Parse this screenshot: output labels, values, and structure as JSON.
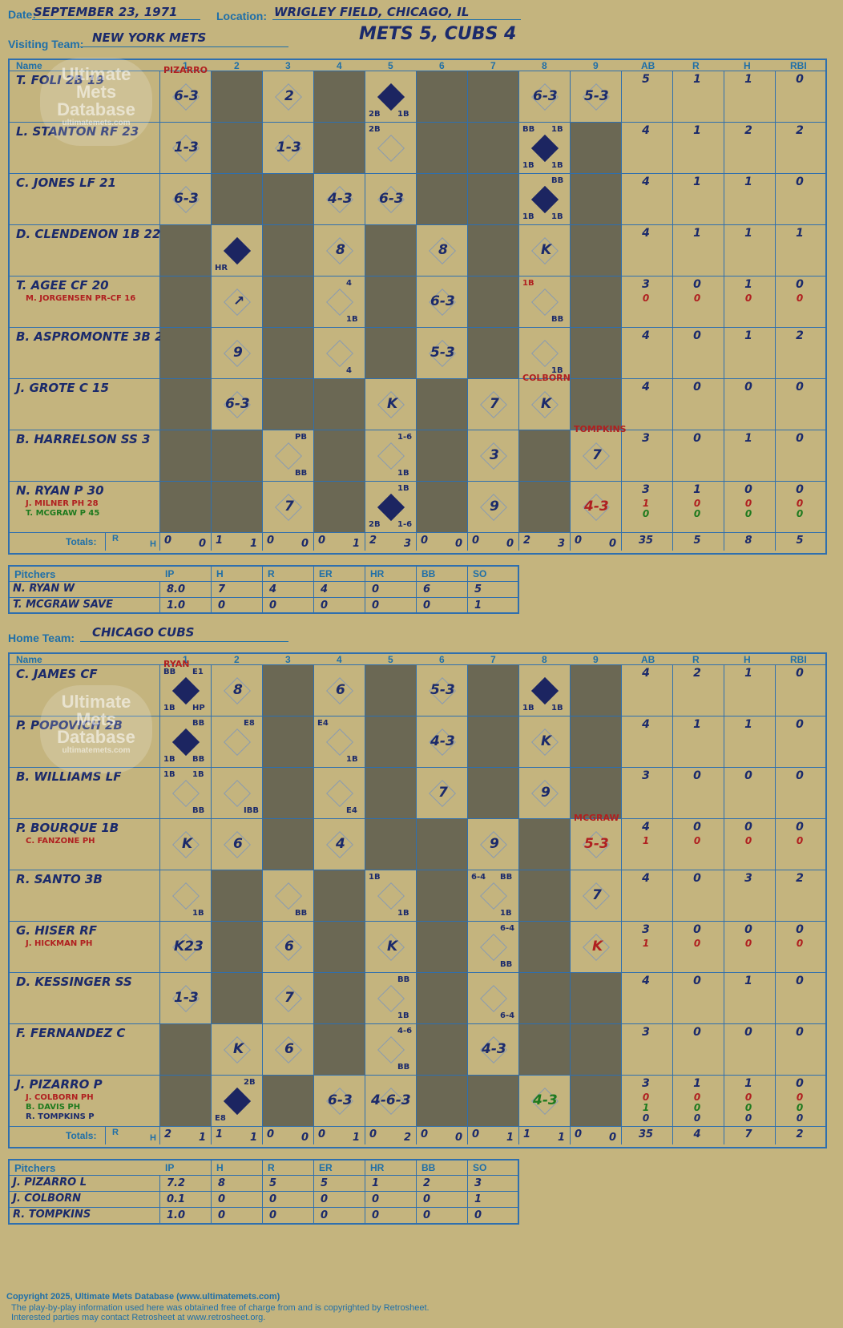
{
  "header": {
    "date_label": "Date:",
    "date": "SEPTEMBER 23, 1971",
    "location_label": "Location:",
    "location": "WRIGLEY FIELD, CHICAGO, IL",
    "visiting_label": "Visiting Team:",
    "visiting_team": "NEW YORK METS",
    "score": "METS 5, CUBS 4",
    "home_label": "Home Team:",
    "home_team": "CHICAGO CUBS"
  },
  "watermark": {
    "line1": "Ultimate",
    "line2": "Mets",
    "line3": "Database",
    "line4": "ultimatemets.com"
  },
  "grid_headers": {
    "name": "Name",
    "innings": [
      "1",
      "2",
      "3",
      "4",
      "5",
      "6",
      "7",
      "8",
      "9"
    ],
    "stats": [
      "AB",
      "R",
      "H",
      "RBI"
    ],
    "totals": "Totals:",
    "r": "R",
    "h": "H"
  },
  "visitors": {
    "players": [
      {
        "name": "T. FOLI 2B 19",
        "subs": [],
        "stats": [
          "5",
          "1",
          "1",
          "0"
        ],
        "sub_stats": []
      },
      {
        "name": "L. STANTON RF 23",
        "subs": [],
        "stats": [
          "4",
          "1",
          "2",
          "2"
        ],
        "sub_stats": []
      },
      {
        "name": "C. JONES LF 21",
        "subs": [],
        "stats": [
          "4",
          "1",
          "1",
          "0"
        ],
        "sub_stats": []
      },
      {
        "name": "D. CLENDENON 1B 22",
        "subs": [],
        "stats": [
          "4",
          "1",
          "1",
          "1"
        ],
        "sub_stats": []
      },
      {
        "name": "T. AGEE CF 20",
        "subs": [
          {
            "name": "M. JORGENSEN PR-CF 16",
            "color": "red"
          }
        ],
        "stats": [
          "3",
          "0",
          "1",
          "0"
        ],
        "sub_stats": [
          {
            "v": [
              "0",
              "0",
              "0",
              "0"
            ],
            "color": "red"
          }
        ]
      },
      {
        "name": "B. ASPROMONTE 3B 2",
        "subs": [],
        "stats": [
          "4",
          "0",
          "1",
          "2"
        ],
        "sub_stats": []
      },
      {
        "name": "J. GROTE C 15",
        "subs": [],
        "stats": [
          "4",
          "0",
          "0",
          "0"
        ],
        "sub_stats": []
      },
      {
        "name": "B. HARRELSON SS 3",
        "subs": [],
        "stats": [
          "3",
          "0",
          "1",
          "0"
        ],
        "sub_stats": []
      },
      {
        "name": "N. RYAN P 30",
        "subs": [
          {
            "name": "J. MILNER PH 28",
            "color": "red"
          },
          {
            "name": "T. MCGRAW P 45",
            "color": "green"
          }
        ],
        "stats": [
          "3",
          "1",
          "0",
          "0"
        ],
        "sub_stats": [
          {
            "v": [
              "1",
              "0",
              "0",
              "0"
            ],
            "color": "red"
          },
          {
            "v": [
              "0",
              "0",
              "0",
              "0"
            ],
            "color": "green"
          }
        ]
      }
    ],
    "totals_by_inning": [
      [
        "0",
        "0"
      ],
      [
        "1",
        "1"
      ],
      [
        "0",
        "0"
      ],
      [
        "0",
        "1"
      ],
      [
        "2",
        "3"
      ],
      [
        "0",
        "0"
      ],
      [
        "0",
        "0"
      ],
      [
        "2",
        "3"
      ],
      [
        "0",
        "0"
      ]
    ],
    "totals_stats": [
      "35",
      "5",
      "8",
      "5"
    ],
    "plays": [
      {
        "r": 0,
        "c": 0,
        "t": "6-3",
        "note": "PIZARRO",
        "noteColor": "red"
      },
      {
        "r": 0,
        "c": 2,
        "t": "2"
      },
      {
        "r": 0,
        "c": 4,
        "run": true,
        "bl": "2B",
        "br": "1B"
      },
      {
        "r": 0,
        "c": 7,
        "t": "6-3"
      },
      {
        "r": 0,
        "c": 8,
        "t": "5-3"
      },
      {
        "r": 1,
        "c": 0,
        "t": "1-3"
      },
      {
        "r": 1,
        "c": 2,
        "t": "1-3"
      },
      {
        "r": 1,
        "c": 4,
        "tl": "2B"
      },
      {
        "r": 1,
        "c": 7,
        "run": true,
        "tl": "BB",
        "tr": "1B",
        "bl": "1B",
        "br": "1B"
      },
      {
        "r": 2,
        "c": 0,
        "t": "6-3"
      },
      {
        "r": 2,
        "c": 3,
        "t": "4-3"
      },
      {
        "r": 2,
        "c": 4,
        "t": "6-3"
      },
      {
        "r": 2,
        "c": 7,
        "run": true,
        "tr": "BB",
        "bl": "1B",
        "br": "1B"
      },
      {
        "r": 3,
        "c": 1,
        "run": true,
        "bl": "HR"
      },
      {
        "r": 3,
        "c": 3,
        "t": "8"
      },
      {
        "r": 3,
        "c": 5,
        "t": "8"
      },
      {
        "r": 3,
        "c": 7,
        "t": "K"
      },
      {
        "r": 4,
        "c": 1,
        "t": "↗"
      },
      {
        "r": 4,
        "c": 3,
        "tr": "4",
        "br": "1B"
      },
      {
        "r": 4,
        "c": 5,
        "t": "6-3"
      },
      {
        "r": 4,
        "c": 7,
        "tl": "1B",
        "br": "BB",
        "tlColor": "red"
      },
      {
        "r": 5,
        "c": 1,
        "t": "9"
      },
      {
        "r": 5,
        "c": 3,
        "br": "4"
      },
      {
        "r": 5,
        "c": 5,
        "t": "5-3"
      },
      {
        "r": 5,
        "c": 7,
        "br": "1B"
      },
      {
        "r": 6,
        "c": 1,
        "t": "6-3"
      },
      {
        "r": 6,
        "c": 4,
        "t": "K"
      },
      {
        "r": 6,
        "c": 6,
        "t": "7"
      },
      {
        "r": 6,
        "c": 7,
        "t": "K",
        "note": "COLBORN",
        "noteColor": "red"
      },
      {
        "r": 7,
        "c": 2,
        "tr": "PB",
        "br": "BB"
      },
      {
        "r": 7,
        "c": 4,
        "tr": "1-6",
        "br": "1B"
      },
      {
        "r": 7,
        "c": 6,
        "t": "3"
      },
      {
        "r": 7,
        "c": 8,
        "t": "7",
        "note": "TOMPKINS",
        "noteColor": "red"
      },
      {
        "r": 8,
        "c": 2,
        "t": "7"
      },
      {
        "r": 8,
        "c": 4,
        "run": true,
        "tr": "1B",
        "bl": "2B",
        "br": "1-6"
      },
      {
        "r": 8,
        "c": 6,
        "t": "9"
      },
      {
        "r": 8,
        "c": 8,
        "t": "4-3",
        "tColor": "red"
      }
    ],
    "shaded": [
      [
        0,
        1
      ],
      [
        0,
        3
      ],
      [
        0,
        5
      ],
      [
        0,
        6
      ],
      [
        1,
        1
      ],
      [
        1,
        3
      ],
      [
        1,
        5
      ],
      [
        1,
        6
      ],
      [
        1,
        8
      ],
      [
        2,
        1
      ],
      [
        2,
        2
      ],
      [
        2,
        5
      ],
      [
        2,
        6
      ],
      [
        2,
        8
      ],
      [
        3,
        0
      ],
      [
        3,
        2
      ],
      [
        3,
        4
      ],
      [
        3,
        6
      ],
      [
        3,
        8
      ],
      [
        4,
        0
      ],
      [
        4,
        2
      ],
      [
        4,
        4
      ],
      [
        4,
        6
      ],
      [
        4,
        8
      ],
      [
        5,
        0
      ],
      [
        5,
        2
      ],
      [
        5,
        4
      ],
      [
        5,
        6
      ],
      [
        5,
        8
      ],
      [
        6,
        0
      ],
      [
        6,
        2
      ],
      [
        6,
        3
      ],
      [
        6,
        5
      ],
      [
        6,
        8
      ],
      [
        7,
        0
      ],
      [
        7,
        1
      ],
      [
        7,
        3
      ],
      [
        7,
        5
      ],
      [
        7,
        7
      ],
      [
        8,
        0
      ],
      [
        8,
        1
      ],
      [
        8,
        3
      ],
      [
        8,
        5
      ],
      [
        8,
        7
      ]
    ],
    "pitchers": [
      {
        "name": "N. RYAN  W",
        "v": [
          "8.0",
          "7",
          "4",
          "4",
          "0",
          "6",
          "5"
        ]
      },
      {
        "name": "T. MCGRAW  SAVE",
        "v": [
          "1.0",
          "0",
          "0",
          "0",
          "0",
          "0",
          "1"
        ]
      }
    ]
  },
  "home": {
    "players": [
      {
        "name": "C. JAMES CF",
        "subs": [],
        "stats": [
          "4",
          "2",
          "1",
          "0"
        ],
        "sub_stats": []
      },
      {
        "name": "P. POPOVICH 2B",
        "subs": [],
        "stats": [
          "4",
          "1",
          "1",
          "0"
        ],
        "sub_stats": []
      },
      {
        "name": "B. WILLIAMS LF",
        "subs": [],
        "stats": [
          "3",
          "0",
          "0",
          "0"
        ],
        "sub_stats": []
      },
      {
        "name": "P. BOURQUE 1B",
        "subs": [
          {
            "name": "C. FANZONE PH",
            "color": "red"
          }
        ],
        "stats": [
          "4",
          "0",
          "0",
          "0"
        ],
        "sub_stats": [
          {
            "v": [
              "1",
              "0",
              "0",
              "0"
            ],
            "color": "red"
          }
        ]
      },
      {
        "name": "R. SANTO 3B",
        "subs": [],
        "stats": [
          "4",
          "0",
          "3",
          "2"
        ],
        "sub_stats": []
      },
      {
        "name": "G. HISER RF",
        "subs": [
          {
            "name": "J. HICKMAN PH",
            "color": "red"
          }
        ],
        "stats": [
          "3",
          "0",
          "0",
          "0"
        ],
        "sub_stats": [
          {
            "v": [
              "1",
              "0",
              "0",
              "0"
            ],
            "color": "red"
          }
        ]
      },
      {
        "name": "D. KESSINGER SS",
        "subs": [],
        "stats": [
          "4",
          "0",
          "1",
          "0"
        ],
        "sub_stats": []
      },
      {
        "name": "F. FERNANDEZ C",
        "subs": [],
        "stats": [
          "3",
          "0",
          "0",
          "0"
        ],
        "sub_stats": []
      },
      {
        "name": "J. PIZARRO P",
        "subs": [
          {
            "name": "J. COLBORN PH",
            "color": "red"
          },
          {
            "name": "B. DAVIS PH",
            "color": "green"
          },
          {
            "name": "R. TOMPKINS P",
            "color": "navy"
          }
        ],
        "stats": [
          "3",
          "1",
          "1",
          "0"
        ],
        "sub_stats": [
          {
            "v": [
              "0",
              "0",
              "0",
              "0"
            ],
            "color": "red"
          },
          {
            "v": [
              "1",
              "0",
              "0",
              "0"
            ],
            "color": "green"
          },
          {
            "v": [
              "0",
              "0",
              "0",
              "0"
            ],
            "color": "navy"
          }
        ]
      }
    ],
    "totals_by_inning": [
      [
        "2",
        "1"
      ],
      [
        "1",
        "1"
      ],
      [
        "0",
        "0"
      ],
      [
        "0",
        "1"
      ],
      [
        "0",
        "2"
      ],
      [
        "0",
        "0"
      ],
      [
        "0",
        "1"
      ],
      [
        "1",
        "1"
      ],
      [
        "0",
        "0"
      ]
    ],
    "totals_stats": [
      "35",
      "4",
      "7",
      "2"
    ],
    "plays": [
      {
        "r": 0,
        "c": 0,
        "run": true,
        "tl": "BB",
        "tr": "E1",
        "bl": "1B",
        "br": "HP",
        "note": "RYAN",
        "noteColor": "red"
      },
      {
        "r": 0,
        "c": 1,
        "t": "8"
      },
      {
        "r": 0,
        "c": 3,
        "t": "6"
      },
      {
        "r": 0,
        "c": 5,
        "t": "5-3"
      },
      {
        "r": 0,
        "c": 7,
        "run": true,
        "bl": "1B",
        "br": "1B"
      },
      {
        "r": 1,
        "c": 0,
        "run": true,
        "tr": "BB",
        "bl": "1B",
        "br": "BB"
      },
      {
        "r": 1,
        "c": 1,
        "tr": "E8"
      },
      {
        "r": 1,
        "c": 3,
        "tl": "E4",
        "br": "1B"
      },
      {
        "r": 1,
        "c": 5,
        "t": "4-3"
      },
      {
        "r": 1,
        "c": 7,
        "t": "K"
      },
      {
        "r": 2,
        "c": 0,
        "tl": "1B",
        "tr": "1B",
        "br": "BB"
      },
      {
        "r": 2,
        "c": 1,
        "br": "IBB"
      },
      {
        "r": 2,
        "c": 3,
        "br": "E4"
      },
      {
        "r": 2,
        "c": 5,
        "t": "7"
      },
      {
        "r": 2,
        "c": 7,
        "t": "9"
      },
      {
        "r": 3,
        "c": 0,
        "t": "K"
      },
      {
        "r": 3,
        "c": 1,
        "t": "6"
      },
      {
        "r": 3,
        "c": 3,
        "t": "4"
      },
      {
        "r": 3,
        "c": 6,
        "t": "9"
      },
      {
        "r": 3,
        "c": 8,
        "t": "5-3",
        "tColor": "red",
        "note": "MCGRAW",
        "noteColor": "red"
      },
      {
        "r": 4,
        "c": 0,
        "br": "1B"
      },
      {
        "r": 4,
        "c": 2,
        "br": "BB"
      },
      {
        "r": 4,
        "c": 4,
        "tl": "1B",
        "br": "1B"
      },
      {
        "r": 4,
        "c": 6,
        "tl": "6-4",
        "tr": "BB",
        "br": "1B"
      },
      {
        "r": 4,
        "c": 8,
        "t": "7"
      },
      {
        "r": 5,
        "c": 0,
        "t": "K23"
      },
      {
        "r": 5,
        "c": 2,
        "t": "6"
      },
      {
        "r": 5,
        "c": 4,
        "t": "K"
      },
      {
        "r": 5,
        "c": 6,
        "tr": "6-4",
        "br": "BB"
      },
      {
        "r": 5,
        "c": 8,
        "t": "K",
        "tColor": "red"
      },
      {
        "r": 6,
        "c": 0,
        "t": "1-3"
      },
      {
        "r": 6,
        "c": 2,
        "t": "7"
      },
      {
        "r": 6,
        "c": 4,
        "tr": "BB",
        "br": "1B"
      },
      {
        "r": 6,
        "c": 6,
        "br": "6-4"
      },
      {
        "r": 7,
        "c": 1,
        "t": "K"
      },
      {
        "r": 7,
        "c": 2,
        "t": "6"
      },
      {
        "r": 7,
        "c": 4,
        "tr": "4-6",
        "br": "BB"
      },
      {
        "r": 7,
        "c": 6,
        "t": "4-3"
      },
      {
        "r": 8,
        "c": 1,
        "run": true,
        "tr": "2B",
        "bl": "E8"
      },
      {
        "r": 8,
        "c": 3,
        "t": "6-3"
      },
      {
        "r": 8,
        "c": 4,
        "t": "4-6-3"
      },
      {
        "r": 8,
        "c": 7,
        "t": "4-3",
        "tColor": "green"
      }
    ],
    "shaded": [
      [
        0,
        2
      ],
      [
        0,
        4
      ],
      [
        0,
        6
      ],
      [
        0,
        8
      ],
      [
        1,
        2
      ],
      [
        1,
        4
      ],
      [
        1,
        6
      ],
      [
        1,
        8
      ],
      [
        2,
        2
      ],
      [
        2,
        4
      ],
      [
        2,
        6
      ],
      [
        2,
        8
      ],
      [
        3,
        2
      ],
      [
        3,
        4
      ],
      [
        3,
        5
      ],
      [
        3,
        7
      ],
      [
        4,
        1
      ],
      [
        4,
        3
      ],
      [
        4,
        5
      ],
      [
        4,
        7
      ],
      [
        5,
        1
      ],
      [
        5,
        3
      ],
      [
        5,
        5
      ],
      [
        5,
        7
      ],
      [
        6,
        1
      ],
      [
        6,
        3
      ],
      [
        6,
        5
      ],
      [
        6,
        7
      ],
      [
        6,
        8
      ],
      [
        7,
        0
      ],
      [
        7,
        3
      ],
      [
        7,
        5
      ],
      [
        7,
        7
      ],
      [
        7,
        8
      ],
      [
        8,
        0
      ],
      [
        8,
        2
      ],
      [
        8,
        5
      ],
      [
        8,
        6
      ],
      [
        8,
        8
      ]
    ],
    "pitchers": [
      {
        "name": "J. PIZARRO  L",
        "v": [
          "7.2",
          "8",
          "5",
          "5",
          "1",
          "2",
          "3"
        ]
      },
      {
        "name": "J. COLBORN",
        "v": [
          "0.1",
          "0",
          "0",
          "0",
          "0",
          "0",
          "1"
        ]
      },
      {
        "name": "R. TOMPKINS",
        "v": [
          "1.0",
          "0",
          "0",
          "0",
          "0",
          "0",
          "0"
        ]
      }
    ]
  },
  "pitcher_headers": {
    "label": "Pitchers",
    "cols": [
      "IP",
      "H",
      "R",
      "ER",
      "HR",
      "BB",
      "SO"
    ]
  },
  "footer": {
    "line1": "Copyright 2025, Ultimate Mets Database (www.ultimatemets.com)",
    "line2": "The play-by-play information used here was obtained free of charge from and is copyrighted by Retrosheet.",
    "line3": "Interested parties may contact Retrosheet at www.retrosheet.org."
  }
}
